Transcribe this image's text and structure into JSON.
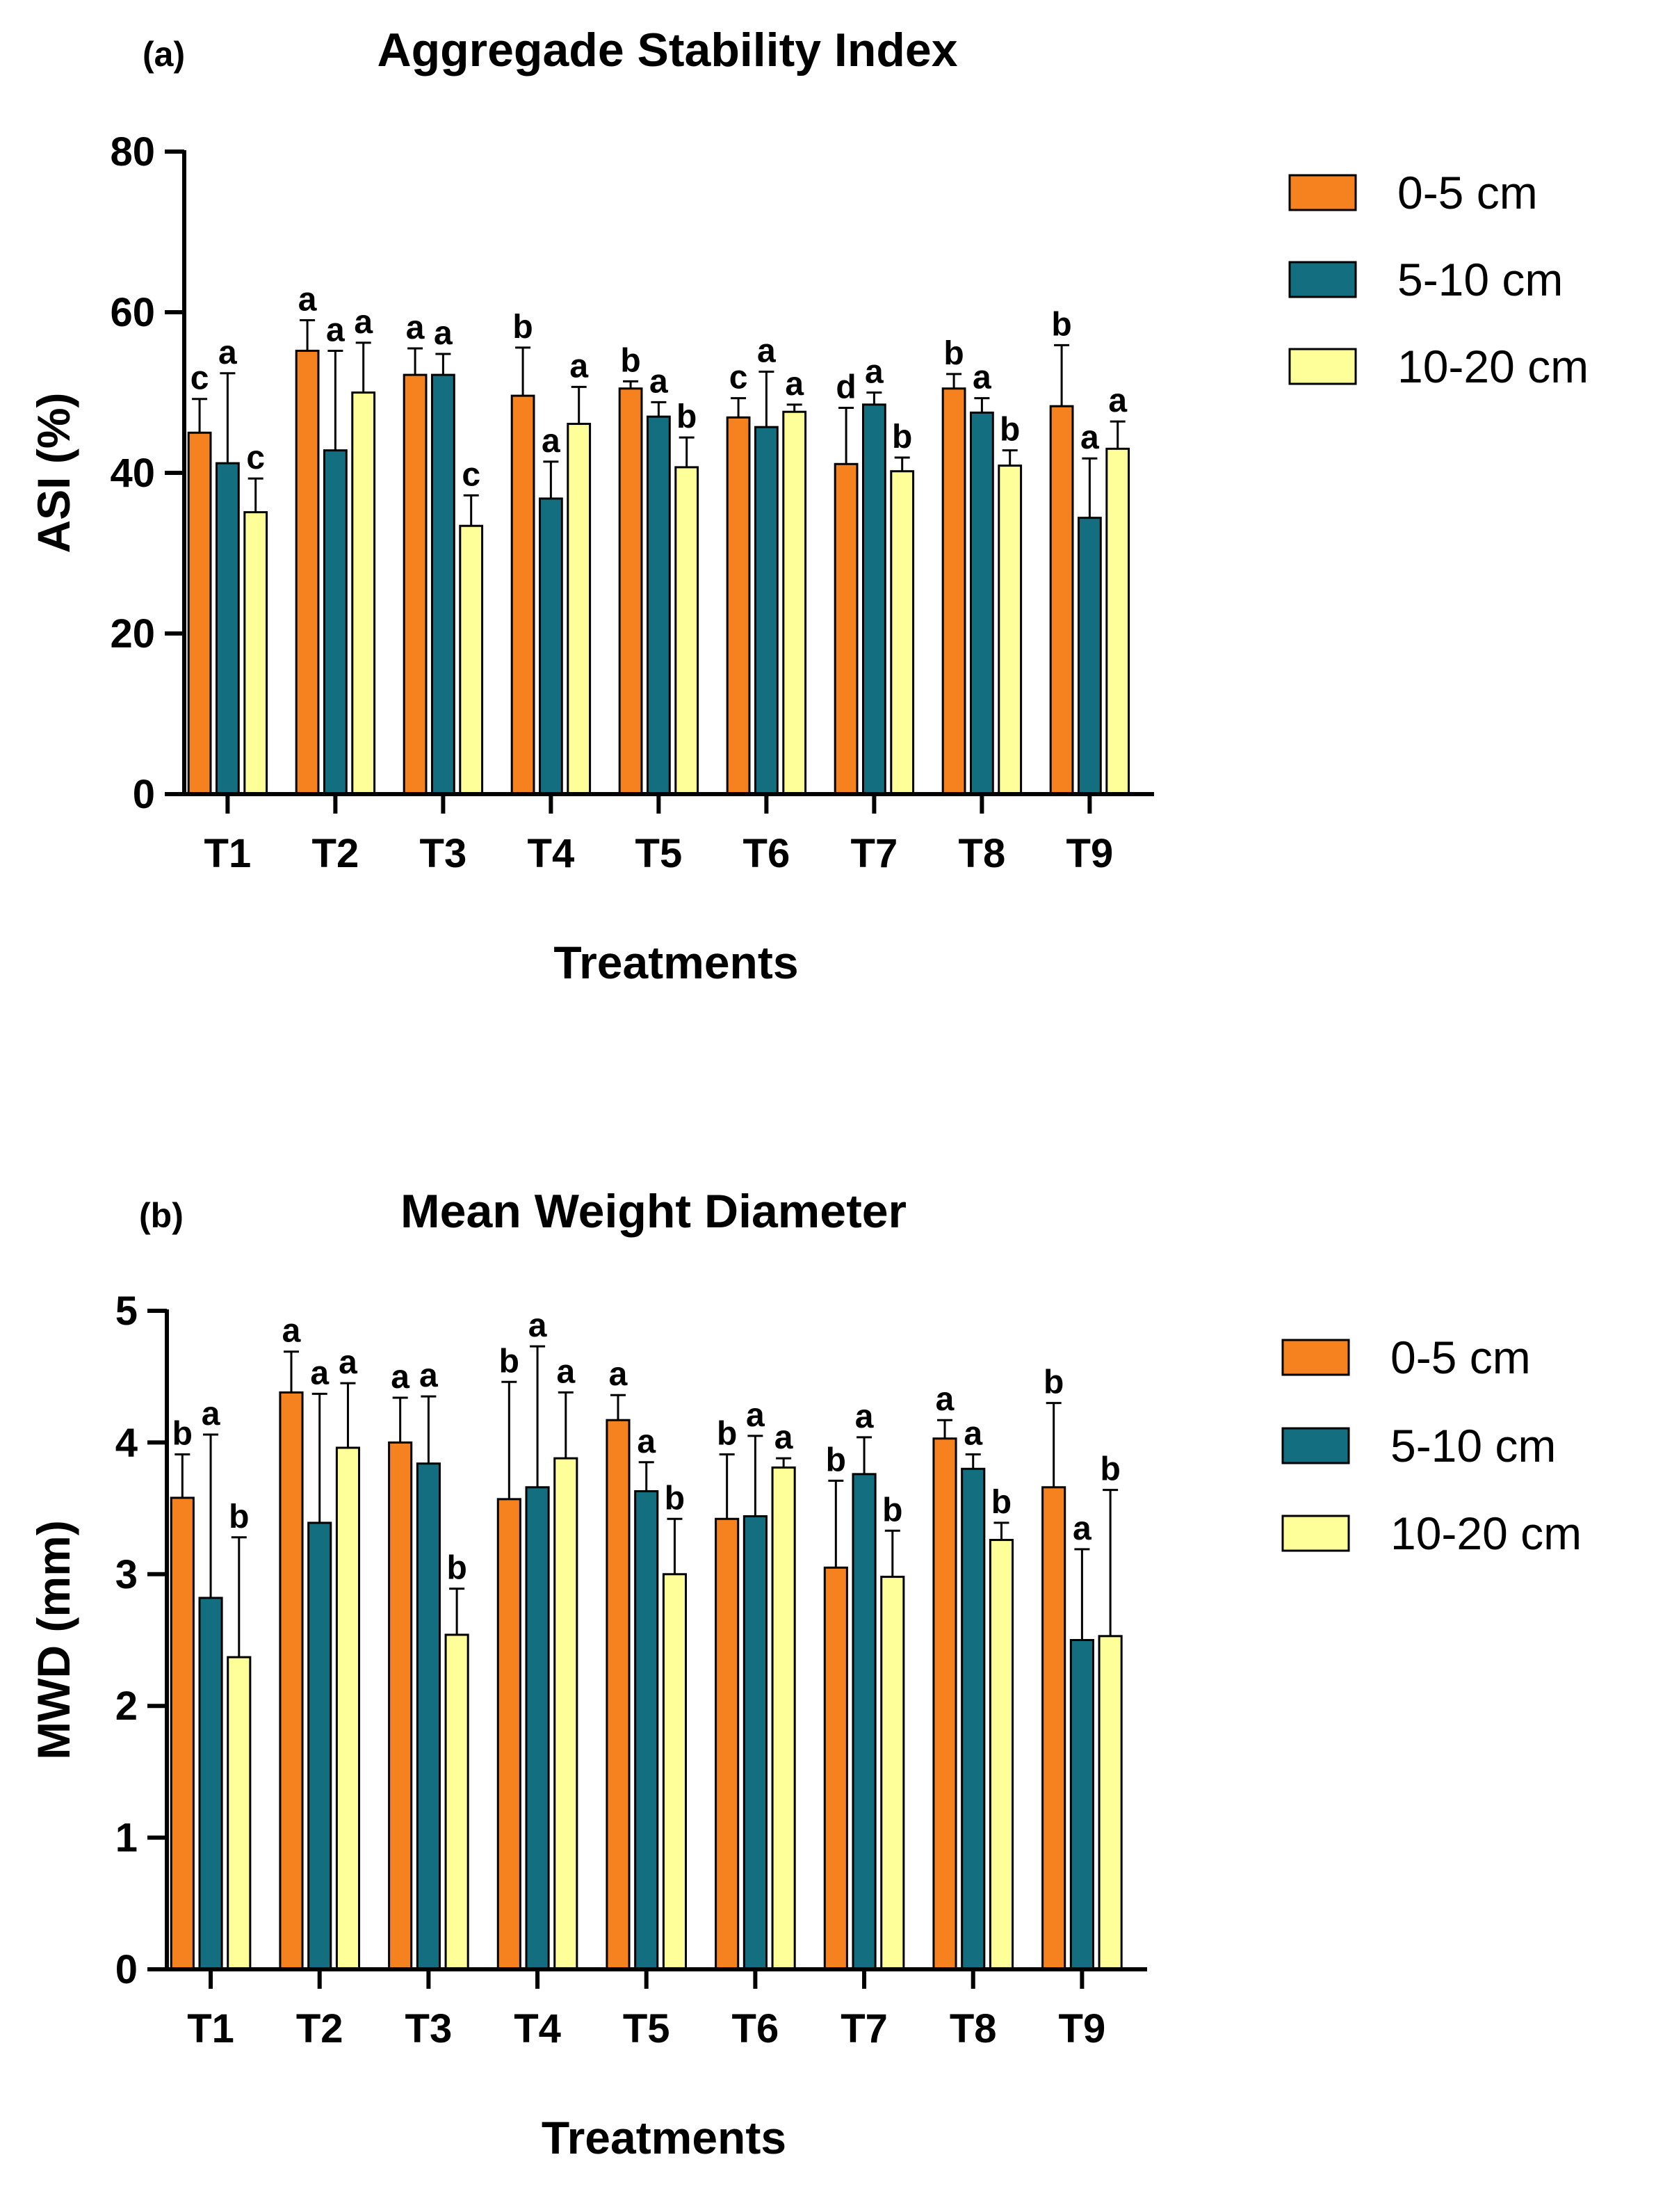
{
  "colors": {
    "series_0": "#F5811F",
    "series_1": "#136F80",
    "series_2": "#FFFF99",
    "outline": "#000000"
  },
  "chart_data": [
    {
      "type": "bar",
      "panel_label": "(a)",
      "title": "Aggregade Stability Index",
      "xlabel": "Treatments",
      "ylabel": "ASI (%)",
      "ylim": [
        0,
        80
      ],
      "yticks": [
        "0",
        "20",
        "40",
        "60",
        "80"
      ],
      "categories": [
        "T1",
        "T2",
        "T3",
        "T4",
        "T5",
        "T6",
        "T7",
        "T8",
        "T9"
      ],
      "legend_position": "top-right",
      "series": [
        {
          "name": "0-5 cm",
          "values": [
            45.0,
            55.2,
            52.2,
            49.6,
            50.5,
            46.9,
            41.1,
            50.5,
            48.3
          ],
          "errors": [
            4.2,
            3.8,
            3.3,
            6.0,
            0.9,
            2.4,
            7.0,
            1.8,
            7.6
          ],
          "letters": [
            "c",
            "a",
            "a",
            "b",
            "b",
            "c",
            "d",
            "b",
            "b"
          ]
        },
        {
          "name": "5-10 cm",
          "values": [
            41.2,
            42.8,
            52.2,
            36.8,
            47.0,
            45.7,
            48.5,
            47.5,
            34.4
          ],
          "errors": [
            11.2,
            12.4,
            2.6,
            4.6,
            1.8,
            6.9,
            1.5,
            1.8,
            7.4
          ],
          "letters": [
            "a",
            "a",
            "a",
            "a",
            "a",
            "a",
            "a",
            "a",
            "a"
          ]
        },
        {
          "name": "10-20 cm",
          "values": [
            35.1,
            50.0,
            33.4,
            46.1,
            40.7,
            47.6,
            40.2,
            40.9,
            43.0
          ],
          "errors": [
            4.2,
            6.2,
            3.8,
            4.6,
            3.7,
            0.9,
            1.7,
            1.9,
            3.4
          ],
          "letters": [
            "c",
            "a",
            "c",
            "a",
            "b",
            "a",
            "b",
            "b",
            "a"
          ]
        }
      ]
    },
    {
      "type": "bar",
      "panel_label": "(b)",
      "title": "Mean Weight Diameter",
      "xlabel": "Treatments",
      "ylabel": "MWD (mm)",
      "ylim": [
        0,
        5
      ],
      "yticks": [
        "0",
        "1",
        "2",
        "3",
        "4",
        "5"
      ],
      "categories": [
        "T1",
        "T2",
        "T3",
        "T4",
        "T5",
        "T6",
        "T7",
        "T8",
        "T9"
      ],
      "legend_position": "top-right",
      "series": [
        {
          "name": "0-5 cm",
          "values": [
            3.58,
            4.38,
            4.0,
            3.57,
            4.17,
            3.42,
            3.05,
            4.03,
            3.66
          ],
          "errors": [
            0.33,
            0.31,
            0.34,
            0.89,
            0.19,
            0.49,
            0.66,
            0.14,
            0.64
          ],
          "letters": [
            "b",
            "a",
            "a",
            "b",
            "a",
            "b",
            "b",
            "a",
            "b"
          ]
        },
        {
          "name": "5-10 cm",
          "values": [
            2.82,
            3.39,
            3.84,
            3.66,
            3.63,
            3.44,
            3.76,
            3.8,
            2.5
          ],
          "errors": [
            1.24,
            0.98,
            0.51,
            1.07,
            0.22,
            0.61,
            0.28,
            0.11,
            0.69
          ],
          "letters": [
            "a",
            "a",
            "a",
            "a",
            "a",
            "a",
            "a",
            "a",
            "a"
          ]
        },
        {
          "name": "10-20 cm",
          "values": [
            2.37,
            3.96,
            2.54,
            3.88,
            3.0,
            3.81,
            2.98,
            3.26,
            2.53
          ],
          "errors": [
            0.91,
            0.49,
            0.35,
            0.5,
            0.42,
            0.07,
            0.35,
            0.13,
            1.11
          ],
          "letters": [
            "b",
            "a",
            "b",
            "a",
            "b",
            "a",
            "b",
            "b",
            "b"
          ]
        }
      ]
    }
  ]
}
